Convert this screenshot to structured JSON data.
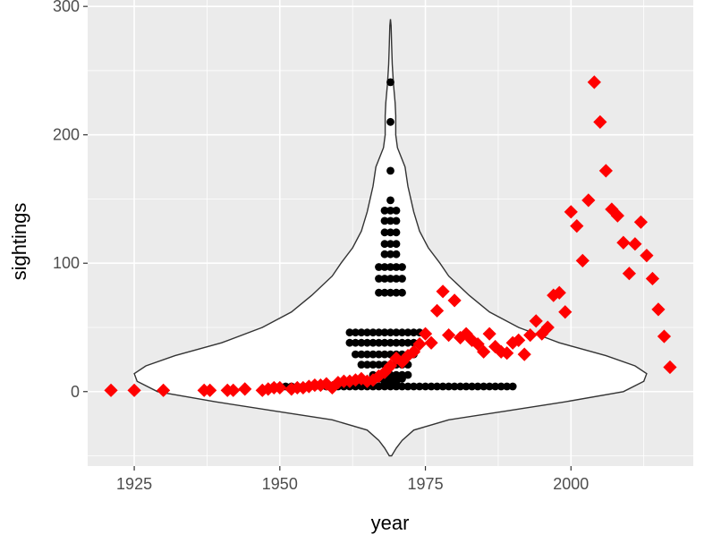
{
  "chart_data": {
    "type": "scatter",
    "xlabel": "year",
    "ylabel": "sightings",
    "xlim": [
      1917,
      2021
    ],
    "ylim": [
      -58,
      305
    ],
    "x_ticks": [
      1925,
      1950,
      1975,
      2000
    ],
    "y_ticks": [
      0,
      100,
      200,
      300
    ],
    "x_tick_labels": [
      "1925",
      "1950",
      "1975",
      "2000"
    ],
    "y_tick_labels": [
      "0",
      "100",
      "200",
      "300"
    ],
    "grid": true,
    "panel_background": "#ebebeb",
    "gridline_color": "#ffffff",
    "violin": {
      "x_center": 1969,
      "fill": "#ffffff",
      "stroke": "#333333",
      "profile": [
        [
          -50,
          0.2
        ],
        [
          -44,
          1.0
        ],
        [
          -38,
          2.0
        ],
        [
          -30,
          4.0
        ],
        [
          -22,
          10.0
        ],
        [
          -15,
          20.0
        ],
        [
          -8,
          30.0
        ],
        [
          0,
          40.0
        ],
        [
          8,
          43.5
        ],
        [
          14,
          44.0
        ],
        [
          20,
          42.0
        ],
        [
          28,
          37.0
        ],
        [
          38,
          29.0
        ],
        [
          50,
          22.0
        ],
        [
          62,
          17.0
        ],
        [
          75,
          13.5
        ],
        [
          90,
          10.0
        ],
        [
          100,
          8.5
        ],
        [
          112,
          6.5
        ],
        [
          125,
          5.0
        ],
        [
          140,
          4.0
        ],
        [
          160,
          3.0
        ],
        [
          175,
          2.5
        ],
        [
          190,
          1.2
        ],
        [
          200,
          0.9
        ],
        [
          215,
          0.9
        ],
        [
          225,
          0.8
        ],
        [
          240,
          0.5
        ],
        [
          255,
          0.3
        ],
        [
          270,
          0.2
        ],
        [
          285,
          0.1
        ],
        [
          290,
          0
        ]
      ]
    },
    "series": [
      {
        "name": "dots",
        "marker": "circle",
        "color": "#000000",
        "x": [
          1969,
          1969,
          1969,
          1969,
          1968,
          1969,
          1970,
          1968,
          1969,
          1970,
          1968,
          1969,
          1970,
          1968,
          1969,
          1970,
          1968,
          1969,
          1970,
          1967,
          1968,
          1969,
          1970,
          1971,
          1967,
          1968,
          1969,
          1970,
          1971,
          1967,
          1968,
          1969,
          1970,
          1971,
          1962,
          1963,
          1964,
          1965,
          1966,
          1967,
          1968,
          1969,
          1970,
          1971,
          1972,
          1973,
          1974,
          1962,
          1963,
          1964,
          1965,
          1966,
          1967,
          1968,
          1969,
          1970,
          1971,
          1972,
          1973,
          1974,
          1963,
          1964,
          1965,
          1966,
          1967,
          1968,
          1969,
          1970,
          1971,
          1972,
          1973,
          1964,
          1965,
          1966,
          1967,
          1968,
          1969,
          1970,
          1971,
          1972,
          1966,
          1967,
          1968,
          1969,
          1970,
          1971,
          1972,
          1967,
          1968,
          1969,
          1970,
          1971,
          1968,
          1969,
          1970,
          1949,
          1950,
          1951,
          1952,
          1953,
          1954,
          1955,
          1956,
          1957,
          1958,
          1959,
          1960,
          1961,
          1962,
          1963,
          1964,
          1965,
          1966,
          1967,
          1968,
          1969,
          1970,
          1971,
          1972,
          1973,
          1974,
          1975,
          1976,
          1977,
          1978,
          1979,
          1980,
          1981,
          1982,
          1983,
          1984,
          1985,
          1986,
          1987,
          1988,
          1989,
          1990
        ],
        "y": [
          241,
          210,
          172,
          149,
          141,
          141,
          141,
          133,
          133,
          133,
          124,
          124,
          124,
          115,
          115,
          115,
          107,
          107,
          107,
          97,
          97,
          97,
          97,
          97,
          88,
          88,
          88,
          88,
          88,
          77,
          77,
          77,
          77,
          77,
          46,
          46,
          46,
          46,
          46,
          46,
          46,
          46,
          46,
          46,
          46,
          46,
          46,
          38,
          38,
          38,
          38,
          38,
          38,
          38,
          38,
          38,
          38,
          38,
          38,
          38,
          29,
          29,
          29,
          29,
          29,
          29,
          29,
          29,
          29,
          29,
          29,
          21,
          21,
          21,
          21,
          21,
          21,
          21,
          21,
          21,
          13,
          13,
          13,
          13,
          13,
          13,
          13,
          10,
          10,
          10,
          10,
          10,
          7,
          7,
          7,
          4,
          4,
          4,
          4,
          4,
          4,
          4,
          4,
          4,
          4,
          4,
          4,
          4,
          4,
          4,
          4,
          4,
          4,
          4,
          4,
          4,
          4,
          4,
          4,
          4,
          4,
          4,
          4,
          4,
          4,
          4,
          4,
          4,
          4,
          4,
          4,
          4,
          4,
          4,
          4,
          4,
          4
        ]
      },
      {
        "name": "diamonds",
        "marker": "diamond",
        "color": "#ff0000",
        "x": [
          1921,
          1925,
          1930,
          1937,
          1938,
          1941,
          1942,
          1944,
          1947,
          1948,
          1949,
          1950,
          1952,
          1953,
          1954,
          1955,
          1956,
          1957,
          1958,
          1959,
          1960,
          1961,
          1962,
          1963,
          1964,
          1965,
          1966,
          1967,
          1968,
          1969,
          1970,
          1971,
          1972,
          1973,
          1974,
          1975,
          1976,
          1977,
          1978,
          1979,
          1980,
          1981,
          1982,
          1983,
          1984,
          1985,
          1986,
          1987,
          1988,
          1989,
          1990,
          1991,
          1992,
          1993,
          1994,
          1995,
          1996,
          1997,
          1998,
          1999,
          2000,
          2001,
          2002,
          2003,
          2004,
          2005,
          2006,
          2007,
          2008,
          2009,
          2010,
          2011,
          2012,
          2013,
          2014,
          2015,
          2016,
          2017
        ],
        "y": [
          1,
          1,
          1,
          1,
          1,
          1,
          1,
          2,
          1,
          2,
          3,
          3,
          2,
          3,
          3,
          4,
          5,
          5,
          6,
          3,
          7,
          8,
          8,
          9,
          10,
          8,
          9,
          12,
          15,
          20,
          26,
          23,
          28,
          31,
          37,
          45,
          38,
          63,
          78,
          44,
          71,
          42,
          45,
          40,
          37,
          31,
          45,
          35,
          31,
          30,
          38,
          40,
          29,
          44,
          55,
          45,
          50,
          75,
          77,
          62,
          140,
          129,
          102,
          149,
          241,
          210,
          172,
          142,
          137,
          116,
          92,
          115,
          132,
          106,
          88,
          64,
          43,
          19
        ]
      }
    ]
  }
}
